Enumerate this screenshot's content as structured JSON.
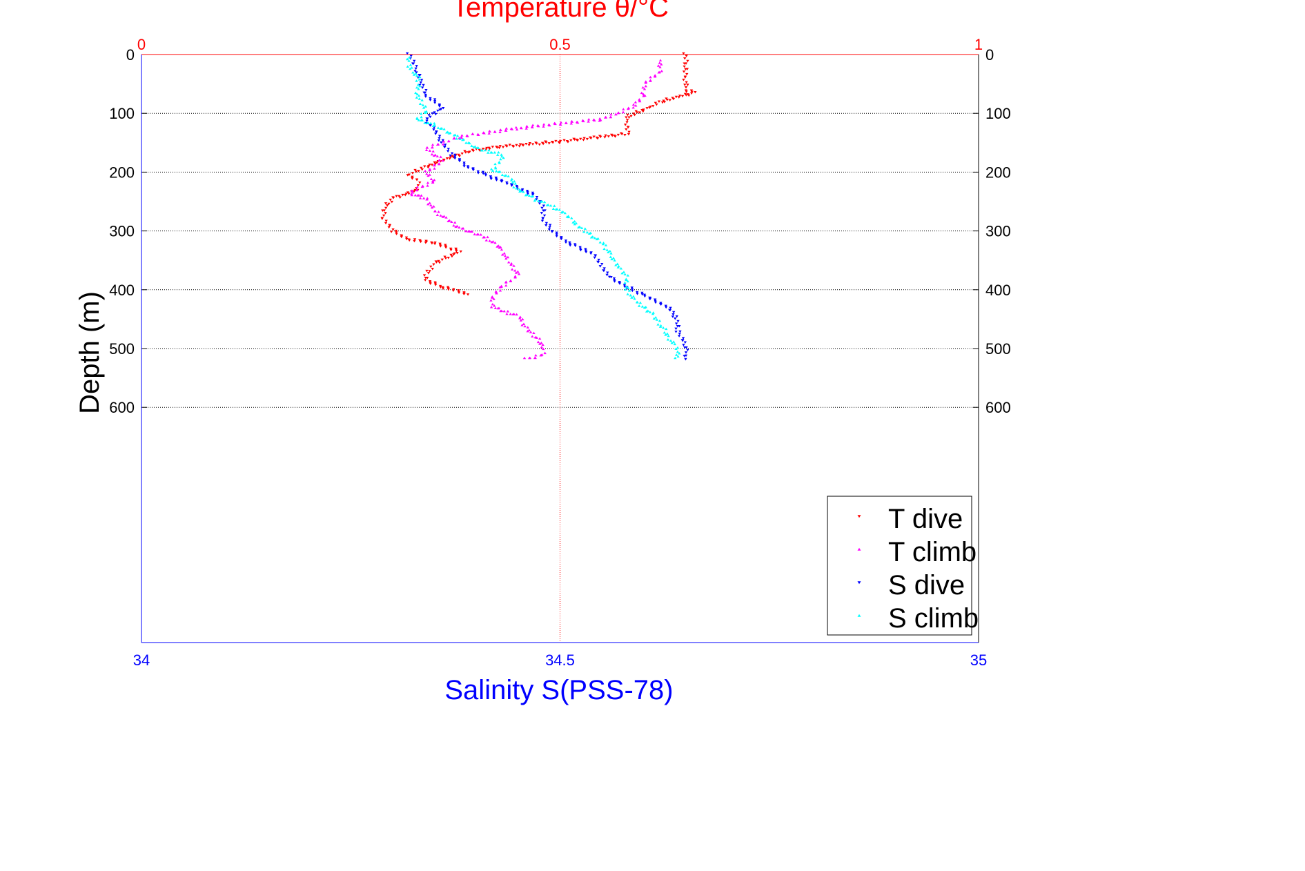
{
  "chart_data": {
    "type": "scatter",
    "title": "Temperature θ/°C",
    "xlabel_top": "Temperature θ/°C",
    "xlabel": "Salinity S(PSS-78)",
    "ylabel": "Depth (m)",
    "x_top": {
      "lim": [
        0,
        1
      ],
      "ticks": [
        "0",
        "0.5",
        "1"
      ],
      "color": "#ff0000"
    },
    "x_bottom": {
      "lim": [
        34,
        35
      ],
      "ticks": [
        "34",
        "34.5",
        "35"
      ],
      "color": "#0000ff"
    },
    "y": {
      "lim": [
        0,
        1000
      ],
      "reversed": true,
      "ticks": [
        "0",
        "100",
        "200",
        "300",
        "400",
        "500",
        "600"
      ]
    },
    "grid": true,
    "legend_position": "bottom-right",
    "series": [
      {
        "name": "T dive",
        "axis": "temperature",
        "color": "#ff0000",
        "marker": "triangle-down",
        "points": [
          [
            0.65,
            0
          ],
          [
            0.65,
            20
          ],
          [
            0.65,
            40
          ],
          [
            0.65,
            60
          ],
          [
            0.66,
            65
          ],
          [
            0.62,
            80
          ],
          [
            0.6,
            95
          ],
          [
            0.58,
            105
          ],
          [
            0.58,
            115
          ],
          [
            0.58,
            125
          ],
          [
            0.58,
            135
          ],
          [
            0.55,
            140
          ],
          [
            0.5,
            148
          ],
          [
            0.42,
            158
          ],
          [
            0.39,
            165
          ],
          [
            0.36,
            180
          ],
          [
            0.34,
            190
          ],
          [
            0.32,
            205
          ],
          [
            0.33,
            215
          ],
          [
            0.33,
            230
          ],
          [
            0.3,
            245
          ],
          [
            0.29,
            260
          ],
          [
            0.29,
            280
          ],
          [
            0.3,
            300
          ],
          [
            0.32,
            315
          ],
          [
            0.35,
            320
          ],
          [
            0.38,
            335
          ],
          [
            0.35,
            355
          ],
          [
            0.34,
            375
          ],
          [
            0.34,
            385
          ],
          [
            0.36,
            395
          ],
          [
            0.39,
            408
          ]
        ]
      },
      {
        "name": "T climb",
        "axis": "temperature",
        "color": "#ff00ff",
        "marker": "triangle-up",
        "points": [
          [
            0.46,
            518
          ],
          [
            0.48,
            510
          ],
          [
            0.48,
            495
          ],
          [
            0.47,
            480
          ],
          [
            0.46,
            465
          ],
          [
            0.45,
            445
          ],
          [
            0.42,
            430
          ],
          [
            0.42,
            410
          ],
          [
            0.43,
            395
          ],
          [
            0.45,
            375
          ],
          [
            0.44,
            355
          ],
          [
            0.43,
            330
          ],
          [
            0.41,
            310
          ],
          [
            0.38,
            295
          ],
          [
            0.35,
            265
          ],
          [
            0.34,
            245
          ],
          [
            0.32,
            235
          ],
          [
            0.35,
            215
          ],
          [
            0.34,
            200
          ],
          [
            0.36,
            180
          ],
          [
            0.34,
            160
          ],
          [
            0.38,
            140
          ],
          [
            0.45,
            125
          ],
          [
            0.55,
            110
          ],
          [
            0.57,
            100
          ],
          [
            0.59,
            85
          ],
          [
            0.6,
            70
          ],
          [
            0.6,
            50
          ],
          [
            0.62,
            30
          ],
          [
            0.62,
            10
          ]
        ]
      },
      {
        "name": "S dive",
        "axis": "salinity",
        "color": "#0000ff",
        "marker": "triangle-down",
        "points": [
          [
            34.32,
            0
          ],
          [
            34.33,
            30
          ],
          [
            34.34,
            70
          ],
          [
            34.36,
            90
          ],
          [
            34.34,
            110
          ],
          [
            34.35,
            130
          ],
          [
            34.36,
            150
          ],
          [
            34.37,
            170
          ],
          [
            34.39,
            190
          ],
          [
            34.41,
            205
          ],
          [
            34.44,
            220
          ],
          [
            34.47,
            240
          ],
          [
            34.48,
            260
          ],
          [
            34.48,
            280
          ],
          [
            34.49,
            300
          ],
          [
            34.51,
            320
          ],
          [
            34.54,
            340
          ],
          [
            34.55,
            360
          ],
          [
            34.56,
            380
          ],
          [
            34.58,
            395
          ],
          [
            34.6,
            410
          ],
          [
            34.63,
            430
          ],
          [
            34.64,
            450
          ],
          [
            34.64,
            470
          ],
          [
            34.65,
            490
          ],
          [
            34.65,
            510
          ],
          [
            34.65,
            518
          ]
        ]
      },
      {
        "name": "S climb",
        "axis": "salinity",
        "color": "#00ffff",
        "marker": "triangle-up",
        "points": [
          [
            34.64,
            518
          ],
          [
            34.64,
            500
          ],
          [
            34.63,
            480
          ],
          [
            34.62,
            460
          ],
          [
            34.61,
            440
          ],
          [
            34.59,
            420
          ],
          [
            34.58,
            400
          ],
          [
            34.58,
            380
          ],
          [
            34.57,
            360
          ],
          [
            34.56,
            340
          ],
          [
            34.55,
            320
          ],
          [
            34.52,
            290
          ],
          [
            34.51,
            275
          ],
          [
            34.5,
            265
          ],
          [
            34.47,
            245
          ],
          [
            34.45,
            230
          ],
          [
            34.44,
            210
          ],
          [
            34.42,
            195
          ],
          [
            34.43,
            180
          ],
          [
            34.43,
            170
          ],
          [
            34.4,
            160
          ],
          [
            34.39,
            150
          ],
          [
            34.37,
            135
          ],
          [
            34.35,
            120
          ],
          [
            34.33,
            110
          ],
          [
            34.34,
            95
          ],
          [
            34.33,
            70
          ],
          [
            34.33,
            40
          ],
          [
            34.32,
            20
          ],
          [
            34.32,
            5
          ]
        ]
      }
    ]
  }
}
